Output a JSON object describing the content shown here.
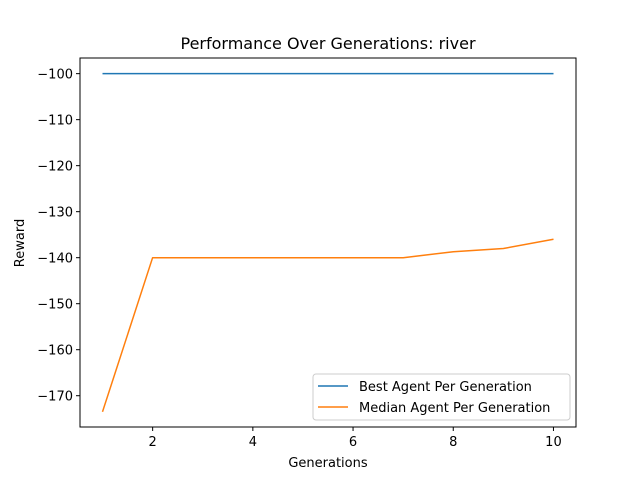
{
  "chart_data": {
    "type": "line",
    "title": "Performance Over Generations: river",
    "xlabel": "Generations",
    "ylabel": "Reward",
    "xlim": [
      0.55,
      10.45
    ],
    "ylim": [
      -176.8,
      -96.6
    ],
    "xticks": [
      2,
      4,
      6,
      8,
      10
    ],
    "yticks": [
      -100,
      -110,
      -120,
      -130,
      -140,
      -150,
      -160,
      -170
    ],
    "xtick_labels": [
      "2",
      "4",
      "6",
      "8",
      "10"
    ],
    "ytick_labels": [
      "−100",
      "−110",
      "−120",
      "−130",
      "−140",
      "−150",
      "−160",
      "−170"
    ],
    "grid": false,
    "legend_position": "lower right",
    "x": [
      1,
      2,
      3,
      4,
      5,
      6,
      7,
      8,
      9,
      10
    ],
    "series": [
      {
        "name": "Best Agent Per Generation",
        "color": "#1f77b4",
        "values": [
          -100,
          -100,
          -100,
          -100,
          -100,
          -100,
          -100,
          -100,
          -100,
          -100
        ]
      },
      {
        "name": "Median Agent Per Generation",
        "color": "#ff7f0e",
        "values": [
          -173.5,
          -140,
          -140,
          -140,
          -140,
          -140,
          -140,
          -138.7,
          -138,
          -136
        ]
      }
    ]
  }
}
